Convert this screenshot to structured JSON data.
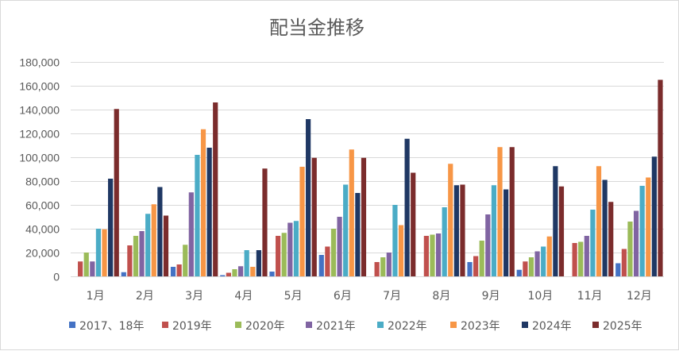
{
  "chart_data": {
    "type": "bar",
    "title": "配当金推移",
    "xlabel": "",
    "ylabel": "",
    "ylim": [
      0,
      180000
    ],
    "yticks": [
      0,
      20000,
      40000,
      60000,
      80000,
      100000,
      120000,
      140000,
      160000,
      180000
    ],
    "ytick_labels": [
      "0",
      "20,000",
      "40,000",
      "60,000",
      "80,000",
      "100,000",
      "120,000",
      "140,000",
      "160,000",
      "180,000"
    ],
    "grid": true,
    "legend_position": "bottom",
    "categories": [
      "1月",
      "2月",
      "3月",
      "4月",
      "5月",
      "6月",
      "7月",
      "8月",
      "9月",
      "10月",
      "11月",
      "12月"
    ],
    "series": [
      {
        "name": "2017、18年",
        "color": "#4472c4",
        "values": [
          0,
          3500,
          8000,
          1000,
          4000,
          18000,
          0,
          0,
          12000,
          5500,
          0,
          11000
        ]
      },
      {
        "name": "2019年",
        "color": "#c0504d",
        "values": [
          12500,
          26000,
          10000,
          3000,
          34000,
          25000,
          12000,
          34000,
          17000,
          12500,
          28000,
          23000
        ]
      },
      {
        "name": "2020年",
        "color": "#9bbb59",
        "values": [
          20000,
          34000,
          26500,
          6000,
          36500,
          40000,
          16000,
          35000,
          30000,
          16000,
          29000,
          46000
        ]
      },
      {
        "name": "2021年",
        "color": "#8064a2",
        "values": [
          12500,
          38000,
          70500,
          8500,
          45000,
          50000,
          20000,
          36000,
          52000,
          21000,
          34000,
          55000
        ]
      },
      {
        "name": "2022年",
        "color": "#4bacc6",
        "values": [
          40000,
          52500,
          102000,
          22000,
          46500,
          77000,
          60000,
          58000,
          76500,
          25000,
          56000,
          76000
        ]
      },
      {
        "name": "2023年",
        "color": "#f79646",
        "values": [
          39500,
          60500,
          123500,
          8000,
          92000,
          106500,
          43000,
          94500,
          108500,
          33500,
          92500,
          83000
        ]
      },
      {
        "name": "2024年",
        "color": "#1f3864",
        "values": [
          82000,
          75000,
          108000,
          22000,
          132000,
          70000,
          115500,
          76500,
          73000,
          92500,
          81000,
          100500
        ]
      },
      {
        "name": "2025年",
        "color": "#7b2c2c",
        "values": [
          140500,
          51000,
          146000,
          90500,
          99500,
          99500,
          87000,
          77000,
          108500,
          75500,
          62500,
          165000
        ]
      }
    ]
  }
}
